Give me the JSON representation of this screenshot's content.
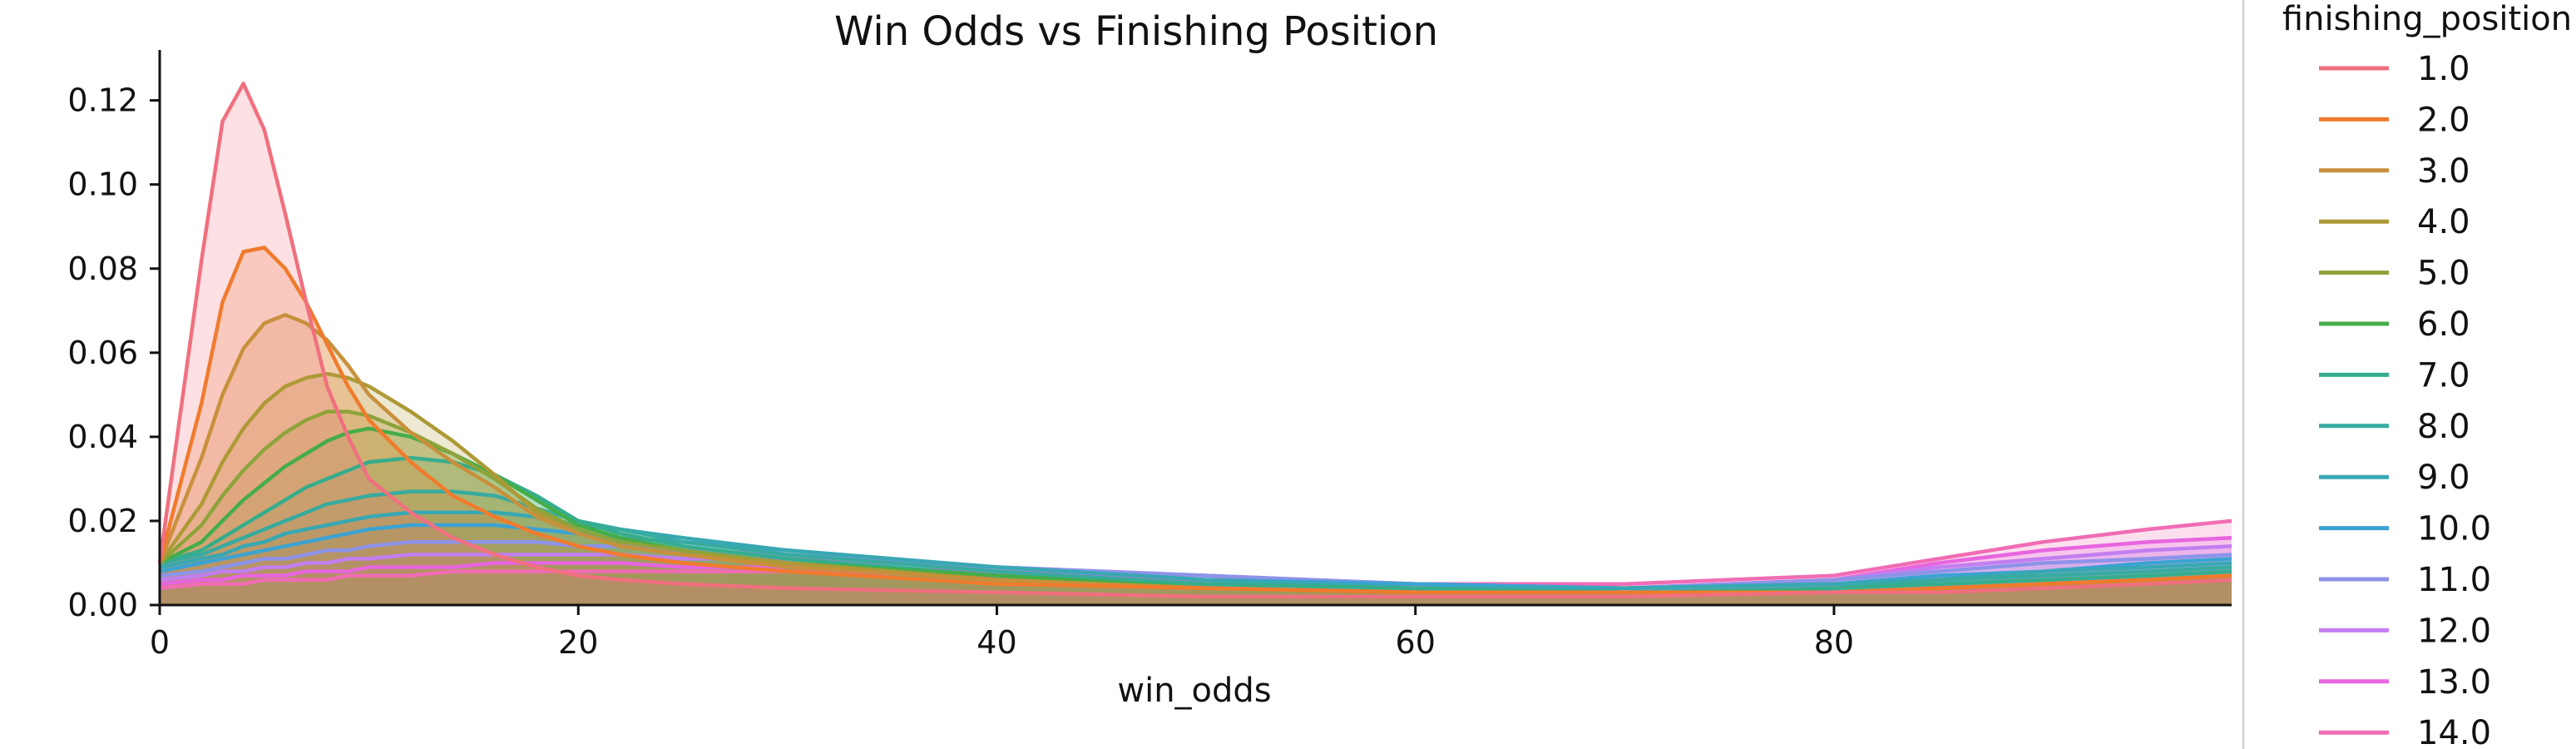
{
  "chart_data": {
    "type": "area",
    "title": "Win Odds vs Finishing Position",
    "xlabel": "win_odds",
    "ylabel": "",
    "xlim": [
      0,
      99
    ],
    "ylim": [
      0,
      0.132
    ],
    "x_ticks": [
      "0",
      "20",
      "40",
      "60",
      "80"
    ],
    "y_ticks": [
      "0.00",
      "0.02",
      "0.04",
      "0.06",
      "0.08",
      "0.10",
      "0.12"
    ],
    "grid": false,
    "legend": {
      "title": "finishing_position",
      "placement": "right"
    },
    "x": [
      0,
      2,
      3,
      4,
      5,
      6,
      7,
      8,
      9,
      10,
      12,
      14,
      16,
      18,
      20,
      22,
      25,
      30,
      40,
      50,
      60,
      70,
      80,
      85,
      90,
      95,
      99
    ],
    "series": [
      {
        "name": "1.0",
        "color": "#f0707f",
        "values": [
          0.01,
          0.082,
          0.115,
          0.124,
          0.113,
          0.093,
          0.072,
          0.052,
          0.04,
          0.03,
          0.022,
          0.016,
          0.012,
          0.009,
          0.007,
          0.006,
          0.005,
          0.004,
          0.003,
          0.002,
          0.002,
          0.002,
          0.003,
          0.003,
          0.004,
          0.005,
          0.006
        ]
      },
      {
        "name": "2.0",
        "color": "#f07b2d",
        "values": [
          0.01,
          0.048,
          0.072,
          0.084,
          0.085,
          0.08,
          0.072,
          0.062,
          0.052,
          0.044,
          0.034,
          0.026,
          0.021,
          0.017,
          0.014,
          0.012,
          0.01,
          0.008,
          0.005,
          0.004,
          0.003,
          0.003,
          0.003,
          0.004,
          0.005,
          0.006,
          0.007
        ]
      },
      {
        "name": "3.0",
        "color": "#c8903c",
        "values": [
          0.01,
          0.035,
          0.05,
          0.061,
          0.067,
          0.069,
          0.067,
          0.063,
          0.057,
          0.05,
          0.041,
          0.034,
          0.028,
          0.021,
          0.017,
          0.014,
          0.012,
          0.009,
          0.006,
          0.004,
          0.003,
          0.003,
          0.003,
          0.004,
          0.005,
          0.006,
          0.007
        ]
      },
      {
        "name": "4.0",
        "color": "#ad9a37",
        "values": [
          0.01,
          0.024,
          0.034,
          0.042,
          0.048,
          0.052,
          0.054,
          0.055,
          0.054,
          0.052,
          0.046,
          0.039,
          0.031,
          0.022,
          0.017,
          0.014,
          0.012,
          0.01,
          0.006,
          0.004,
          0.003,
          0.003,
          0.003,
          0.004,
          0.005,
          0.006,
          0.007
        ]
      },
      {
        "name": "5.0",
        "color": "#8ea33a",
        "values": [
          0.01,
          0.019,
          0.026,
          0.032,
          0.037,
          0.041,
          0.044,
          0.046,
          0.046,
          0.045,
          0.041,
          0.036,
          0.03,
          0.023,
          0.018,
          0.015,
          0.013,
          0.01,
          0.006,
          0.004,
          0.003,
          0.003,
          0.003,
          0.004,
          0.005,
          0.006,
          0.007
        ]
      },
      {
        "name": "6.0",
        "color": "#45ad48",
        "values": [
          0.01,
          0.015,
          0.02,
          0.025,
          0.029,
          0.033,
          0.036,
          0.039,
          0.041,
          0.042,
          0.04,
          0.036,
          0.031,
          0.025,
          0.019,
          0.016,
          0.013,
          0.01,
          0.007,
          0.004,
          0.003,
          0.003,
          0.003,
          0.004,
          0.005,
          0.006,
          0.007
        ]
      },
      {
        "name": "7.0",
        "color": "#36ad8c",
        "values": [
          0.01,
          0.013,
          0.016,
          0.019,
          0.022,
          0.025,
          0.028,
          0.03,
          0.032,
          0.034,
          0.035,
          0.034,
          0.031,
          0.026,
          0.02,
          0.017,
          0.014,
          0.011,
          0.007,
          0.005,
          0.004,
          0.003,
          0.004,
          0.005,
          0.006,
          0.007,
          0.008
        ]
      },
      {
        "name": "8.0",
        "color": "#37ab9f",
        "values": [
          0.01,
          0.012,
          0.014,
          0.016,
          0.018,
          0.02,
          0.022,
          0.024,
          0.025,
          0.026,
          0.027,
          0.027,
          0.026,
          0.023,
          0.02,
          0.018,
          0.015,
          0.012,
          0.008,
          0.005,
          0.004,
          0.003,
          0.004,
          0.006,
          0.007,
          0.008,
          0.009
        ]
      },
      {
        "name": "9.0",
        "color": "#38a8b2",
        "values": [
          0.009,
          0.011,
          0.012,
          0.014,
          0.015,
          0.017,
          0.018,
          0.019,
          0.02,
          0.021,
          0.022,
          0.022,
          0.022,
          0.021,
          0.019,
          0.018,
          0.016,
          0.013,
          0.009,
          0.006,
          0.004,
          0.004,
          0.005,
          0.006,
          0.008,
          0.009,
          0.01
        ]
      },
      {
        "name": "10.0",
        "color": "#3ba3d1",
        "values": [
          0.008,
          0.01,
          0.011,
          0.012,
          0.013,
          0.014,
          0.015,
          0.016,
          0.017,
          0.018,
          0.019,
          0.019,
          0.019,
          0.018,
          0.017,
          0.016,
          0.015,
          0.013,
          0.009,
          0.006,
          0.005,
          0.004,
          0.005,
          0.007,
          0.008,
          0.01,
          0.011
        ]
      },
      {
        "name": "11.0",
        "color": "#8d93e8",
        "values": [
          0.007,
          0.008,
          0.009,
          0.01,
          0.011,
          0.011,
          0.012,
          0.013,
          0.013,
          0.014,
          0.015,
          0.015,
          0.015,
          0.015,
          0.014,
          0.014,
          0.013,
          0.012,
          0.009,
          0.007,
          0.005,
          0.004,
          0.006,
          0.008,
          0.01,
          0.011,
          0.012
        ]
      },
      {
        "name": "12.0",
        "color": "#c27ef0",
        "values": [
          0.006,
          0.007,
          0.008,
          0.008,
          0.009,
          0.009,
          0.01,
          0.01,
          0.011,
          0.011,
          0.012,
          0.012,
          0.012,
          0.012,
          0.012,
          0.012,
          0.011,
          0.011,
          0.009,
          0.007,
          0.005,
          0.004,
          0.006,
          0.009,
          0.011,
          0.013,
          0.014
        ]
      },
      {
        "name": "13.0",
        "color": "#e765df",
        "values": [
          0.005,
          0.006,
          0.006,
          0.007,
          0.007,
          0.007,
          0.008,
          0.008,
          0.008,
          0.009,
          0.009,
          0.009,
          0.01,
          0.01,
          0.01,
          0.01,
          0.009,
          0.009,
          0.008,
          0.006,
          0.005,
          0.004,
          0.006,
          0.01,
          0.013,
          0.015,
          0.016
        ]
      },
      {
        "name": "14.0",
        "color": "#f06cb4",
        "values": [
          0.004,
          0.005,
          0.005,
          0.005,
          0.006,
          0.006,
          0.006,
          0.006,
          0.007,
          0.007,
          0.007,
          0.008,
          0.008,
          0.008,
          0.008,
          0.008,
          0.008,
          0.008,
          0.007,
          0.006,
          0.005,
          0.005,
          0.007,
          0.011,
          0.015,
          0.018,
          0.02
        ]
      }
    ]
  }
}
